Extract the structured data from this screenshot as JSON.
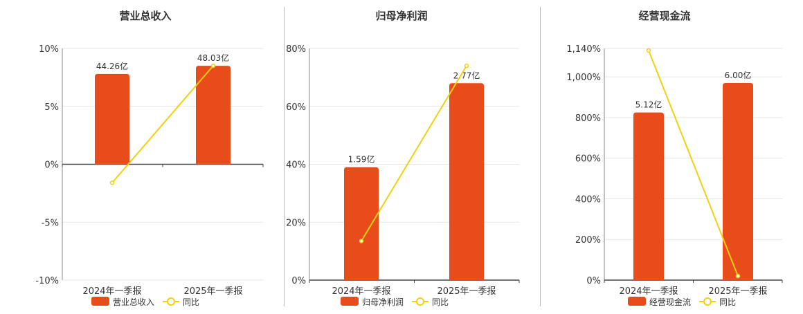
{
  "colors": {
    "bar": "#e84c1a",
    "line": "#f0d010",
    "grid": "#e6e6e6",
    "axis": "#444444",
    "text": "#333333"
  },
  "legend": {
    "line_label": "同比"
  },
  "chart_data": [
    {
      "type": "bar",
      "title": "营业总收入",
      "categories": [
        "2024年一季报",
        "2025年一季报"
      ],
      "bar_labels": [
        "44.26亿",
        "48.03亿"
      ],
      "bar_heights_in_axis_units": [
        7.8,
        8.5
      ],
      "series": [
        {
          "name": "营业总收入",
          "kind": "bar",
          "values_yi": [
            44.26,
            48.03
          ]
        },
        {
          "name": "同比",
          "kind": "line",
          "values_pct": [
            -1.6,
            8.5
          ]
        }
      ],
      "ylim": [
        -10,
        10
      ],
      "yticks": [
        -10,
        -5,
        0,
        5,
        10
      ],
      "ytick_labels": [
        "-10%",
        "-5%",
        "0%",
        "5%",
        "10%"
      ],
      "grid": true,
      "legend_position": "bottom"
    },
    {
      "type": "bar",
      "title": "归母净利润",
      "categories": [
        "2024年一季报",
        "2025年一季报"
      ],
      "bar_labels": [
        "1.59亿",
        "2.77亿"
      ],
      "bar_heights_in_axis_units": [
        39,
        68
      ],
      "series": [
        {
          "name": "归母净利润",
          "kind": "bar",
          "values_yi": [
            1.59,
            2.77
          ]
        },
        {
          "name": "同比",
          "kind": "line",
          "values_pct": [
            13.5,
            74
          ]
        }
      ],
      "ylim": [
        0,
        80
      ],
      "yticks": [
        0,
        20,
        40,
        60,
        80
      ],
      "ytick_labels": [
        "0%",
        "20%",
        "40%",
        "60%",
        "80%"
      ],
      "grid": true,
      "legend_position": "bottom"
    },
    {
      "type": "bar",
      "title": "经营现金流",
      "categories": [
        "2024年一季报",
        "2025年一季报"
      ],
      "bar_labels": [
        "5.12亿",
        "6.00亿"
      ],
      "bar_heights_in_axis_units": [
        825,
        970
      ],
      "series": [
        {
          "name": "经营现金流",
          "kind": "bar",
          "values_yi": [
            5.12,
            6.0
          ]
        },
        {
          "name": "同比",
          "kind": "line",
          "values_pct": [
            1130,
            20
          ]
        }
      ],
      "ylim": [
        0,
        1140
      ],
      "yticks": [
        0,
        200,
        400,
        600,
        800,
        1000,
        1140
      ],
      "ytick_labels": [
        "0%",
        "200%",
        "400%",
        "600%",
        "800%",
        "1,000%",
        "1,140%"
      ],
      "grid": true,
      "legend_position": "bottom"
    }
  ]
}
